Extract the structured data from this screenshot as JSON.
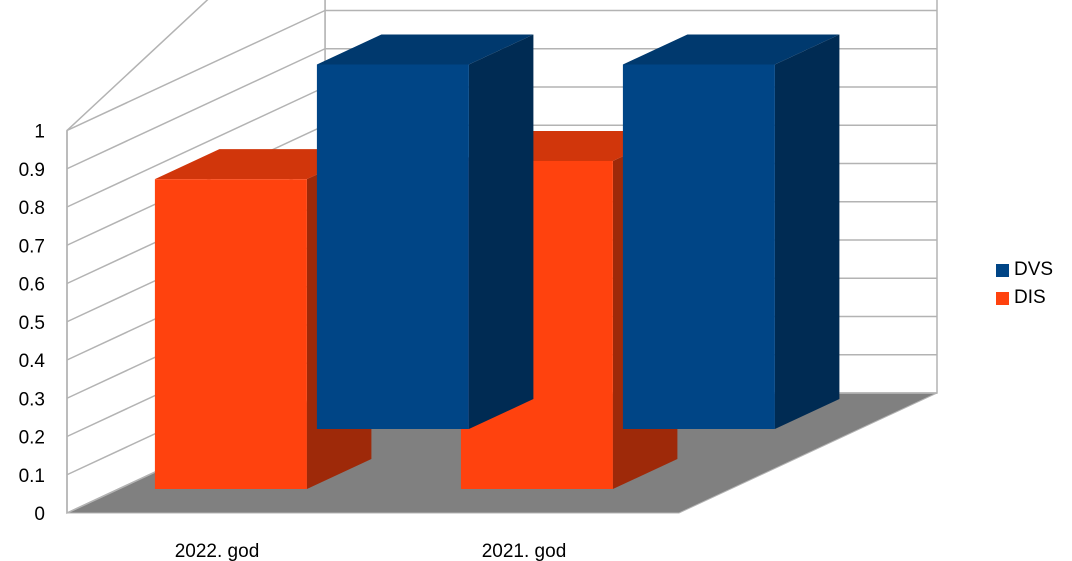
{
  "chart_data": {
    "type": "bar",
    "categories": [
      "2022. god",
      "2021. god"
    ],
    "series": [
      {
        "name": "DVS",
        "values": [
          1.0,
          1.0
        ],
        "color": "#004586"
      },
      {
        "name": "DIS",
        "values": [
          0.85,
          0.9
        ],
        "color": "#ff420e"
      }
    ],
    "ylim": [
      0,
      1
    ],
    "yticks": [
      "0",
      "0.1",
      "0.2",
      "0.3",
      "0.4",
      "0.5",
      "0.6",
      "0.7",
      "0.8",
      "0.9",
      "1"
    ],
    "grid": true,
    "three_d": true,
    "legend_position": "right",
    "colors": {
      "wall": "#ffffff",
      "floor": "#808080",
      "grid": "#b3b3b3"
    }
  }
}
